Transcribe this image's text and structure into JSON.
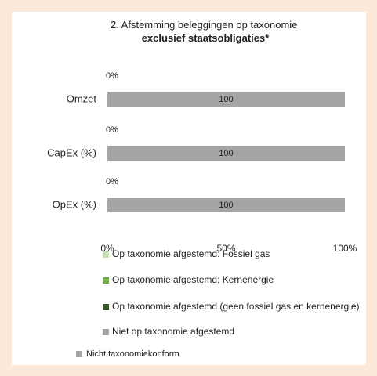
{
  "chart_data": {
    "type": "stacked_barh",
    "title": {
      "text": "2. Afstemming beleggingen op taxonomie",
      "emphasis": "exclusief staatsobligaties*"
    },
    "categories": [
      "Omzet",
      "CapEx (%)",
      "OpEx (%)"
    ],
    "series": [
      {
        "name": "Op taxonomie afgestemd: Fossiel gas",
        "color": "#c6e0b4",
        "values": [
          0,
          0,
          0
        ]
      },
      {
        "name": "Op taxonomie afgestemd: Kernenergie",
        "color": "#70ad47",
        "values": [
          0,
          0,
          0
        ]
      },
      {
        "name": "Op taxonomie afgestemd (geen fossiel gas en kernenergie)",
        "color": "#375623",
        "values": [
          0,
          0,
          0
        ],
        "value_labels": [
          "0%",
          "0%",
          "0%"
        ]
      },
      {
        "name": "Niet op taxonomie afgestemd",
        "color": "#a5a5a5",
        "values": [
          100,
          100,
          100
        ]
      }
    ],
    "xlim": [
      0,
      100
    ],
    "xticks": [
      {
        "value": 0,
        "label": "0%"
      },
      {
        "value": 50,
        "label": "50%"
      },
      {
        "value": 100,
        "label": "100%"
      }
    ],
    "extra_legend": {
      "name": "Nicht taxonomiekonform",
      "color": "#a6a6a6"
    }
  }
}
